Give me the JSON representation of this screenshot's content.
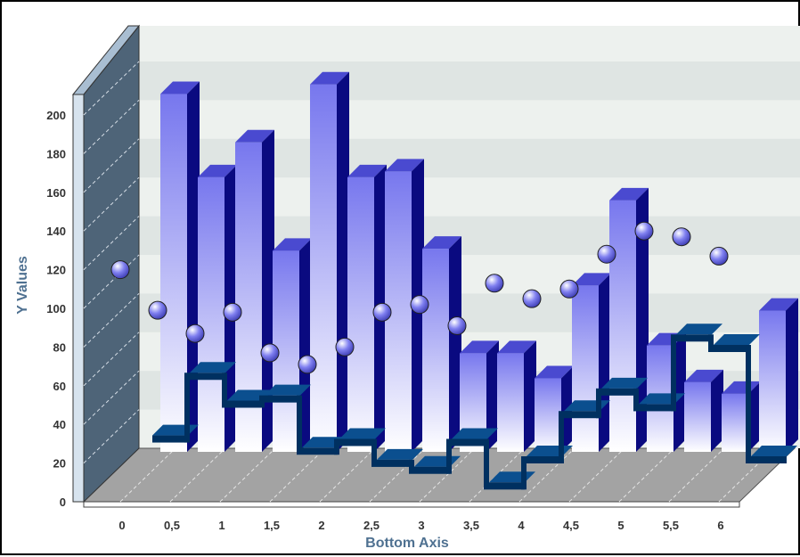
{
  "chart_data": {
    "type": "bar",
    "view": "3d",
    "xlabel": "Bottom Axis",
    "ylabel": "Y Values",
    "ylim": [
      0,
      210
    ],
    "x_tick_labels": [
      "0",
      "0,5",
      "1",
      "1,5",
      "2",
      "2,5",
      "3",
      "3,5",
      "4",
      "4,5",
      "5",
      "5,5",
      "6"
    ],
    "y_tick_labels": [
      "0",
      "20",
      "40",
      "60",
      "80",
      "100",
      "120",
      "140",
      "160",
      "180",
      "200"
    ],
    "grid": "horizontal bands",
    "series": [
      {
        "type": "bar",
        "x": [
          0.25,
          0.625,
          1.0,
          1.375,
          1.75,
          2.125,
          2.5,
          2.875,
          3.25,
          3.625,
          4.0,
          4.375,
          4.75,
          5.125,
          5.5,
          5.875,
          6.25,
          6.625
        ],
        "values": [
          185,
          142,
          160,
          104,
          190,
          142,
          145,
          105,
          51,
          51,
          38,
          86,
          130,
          55,
          36,
          30,
          73,
          0
        ]
      },
      {
        "type": "step",
        "x": [
          0.25,
          0.625,
          1.0,
          1.375,
          1.75,
          2.125,
          2.5,
          2.875,
          3.25,
          3.625,
          4.0,
          4.375,
          4.75,
          5.125,
          5.5,
          5.875,
          6.25
        ],
        "values": [
          12,
          48,
          32,
          35,
          5,
          10,
          -2,
          -6,
          10,
          -15,
          0,
          26,
          39,
          30,
          70,
          64,
          0
        ]
      },
      {
        "type": "points",
        "x": [
          0,
          0.375,
          0.75,
          1.125,
          1.5,
          1.875,
          2.25,
          2.625,
          3.0,
          3.375,
          3.75,
          4.125,
          4.5,
          4.875,
          5.25,
          5.625,
          6.0
        ],
        "values": [
          120,
          99,
          87,
          98,
          77,
          71,
          80,
          98,
          102,
          91,
          113,
          105,
          110,
          128,
          140,
          137,
          127
        ]
      }
    ],
    "colors": {
      "bar_front_top": "#7777ee",
      "bar_front_bottom": "#ffffff",
      "bar_top": "#4a4ad0",
      "bar_side": "#0a0a80",
      "step_top": "#0b4f8f",
      "step_front": "#003060",
      "back_wall": "#edf1ee",
      "band": "#dfe5e3",
      "left_wall": "#4e6478",
      "floor": "#a3a3a3",
      "point": "#7f7ff0",
      "axis_title": "#4f7191"
    }
  }
}
